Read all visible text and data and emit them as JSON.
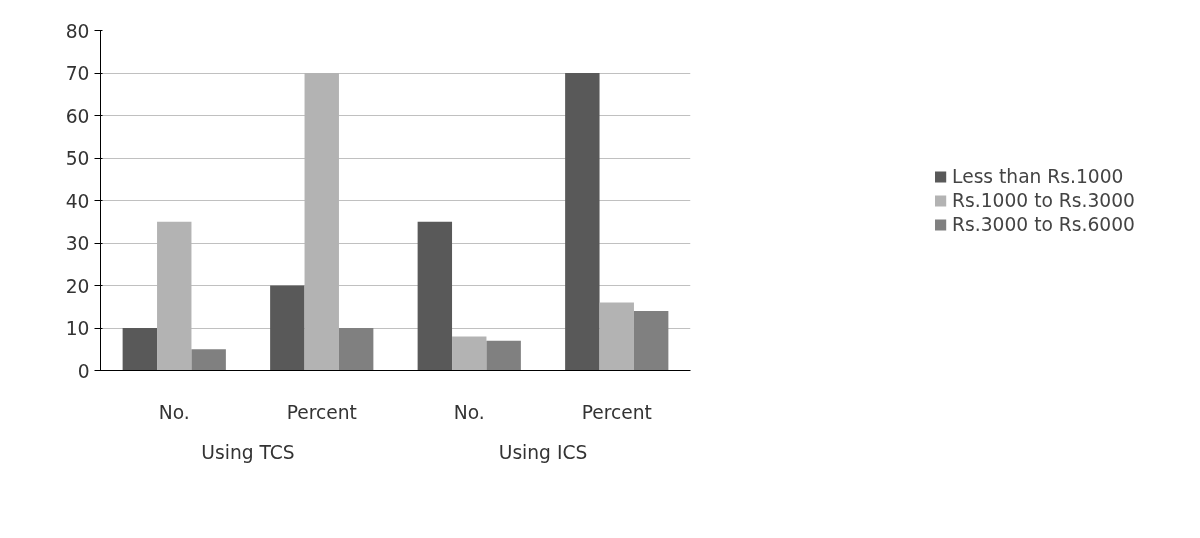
{
  "chart_data": {
    "type": "bar",
    "categories": [
      "No.",
      "Percent",
      "No.",
      "Percent"
    ],
    "series": [
      {
        "name": "Less than Rs.1000",
        "color": "#595959",
        "values": [
          10,
          20,
          35,
          70
        ]
      },
      {
        "name": "Rs.1000 to Rs.3000",
        "color": "#b3b3b3",
        "values": [
          35,
          70,
          8,
          16
        ]
      },
      {
        "name": "Rs.3000 to Rs.6000",
        "color": "#808080",
        "values": [
          5,
          10,
          7,
          14
        ]
      }
    ],
    "annotations": [
      "Using TCS",
      "Using ICS"
    ],
    "ylim": [
      0,
      80
    ],
    "yticks": [
      0,
      10,
      20,
      30,
      40,
      50,
      60,
      70,
      80
    ],
    "grid": "y",
    "legend": "right"
  }
}
